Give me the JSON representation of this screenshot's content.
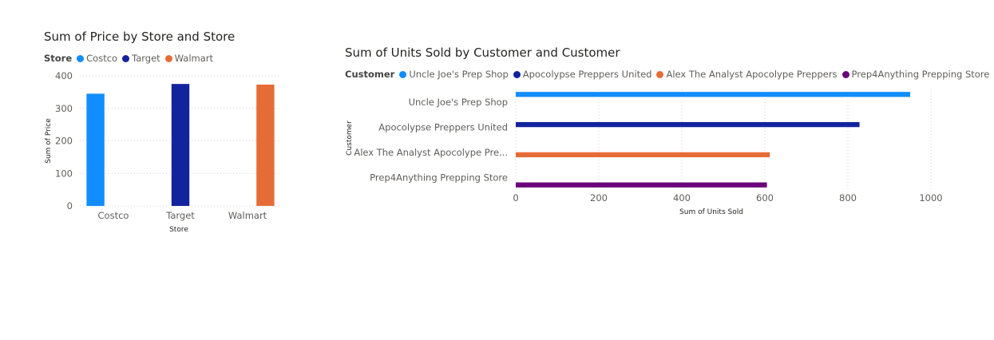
{
  "chart_data": [
    {
      "type": "bar",
      "title": "Sum of Price by Store and Store",
      "legend_title": "Store",
      "legend_position": "top-left",
      "xlabel": "Store",
      "ylabel": "Sum of Price",
      "categories": [
        "Costco",
        "Target",
        "Walmart"
      ],
      "series": [
        {
          "name": "Costco",
          "values": [
            345,
            null,
            null
          ],
          "color": "#118DFF"
        },
        {
          "name": "Target",
          "values": [
            null,
            375,
            null
          ],
          "color": "#12239E"
        },
        {
          "name": "Walmart",
          "values": [
            null,
            null,
            373
          ],
          "color": "#E66C37"
        }
      ],
      "yticks": [
        0,
        100,
        200,
        300,
        400
      ],
      "ylim": [
        0,
        400
      ],
      "grid": true
    },
    {
      "type": "bar",
      "orientation": "horizontal",
      "title": "Sum of Units Sold by Customer and Customer",
      "legend_title": "Customer",
      "legend_position": "top-left",
      "xlabel": "Sum of Units Sold",
      "ylabel": "Customer",
      "categories": [
        "Uncle Joe's Prep Shop",
        "Apocolypse Preppers United",
        "Alex The Analyst Apocolype Pre...",
        "Prep4Anything Prepping Store"
      ],
      "legend_entries": [
        "Uncle Joe's Prep Shop",
        "Apocolypse Preppers United",
        "Alex The Analyst Apocolype Preppers",
        "Prep4Anything Prepping Store"
      ],
      "series": [
        {
          "name": "Uncle Joe's Prep Shop",
          "values": [
            950,
            null,
            null,
            null
          ],
          "color": "#118DFF"
        },
        {
          "name": "Apocolypse Preppers United",
          "values": [
            null,
            828,
            null,
            null
          ],
          "color": "#12239E"
        },
        {
          "name": "Alex The Analyst Apocolype Preppers",
          "values": [
            null,
            null,
            612,
            null
          ],
          "color": "#E66C37"
        },
        {
          "name": "Prep4Anything Prepping Store",
          "values": [
            null,
            null,
            null,
            605
          ],
          "color": "#6B007B"
        }
      ],
      "xticks": [
        0,
        200,
        400,
        600,
        800,
        1000
      ],
      "xlim": [
        0,
        1000
      ],
      "grid": true
    }
  ]
}
